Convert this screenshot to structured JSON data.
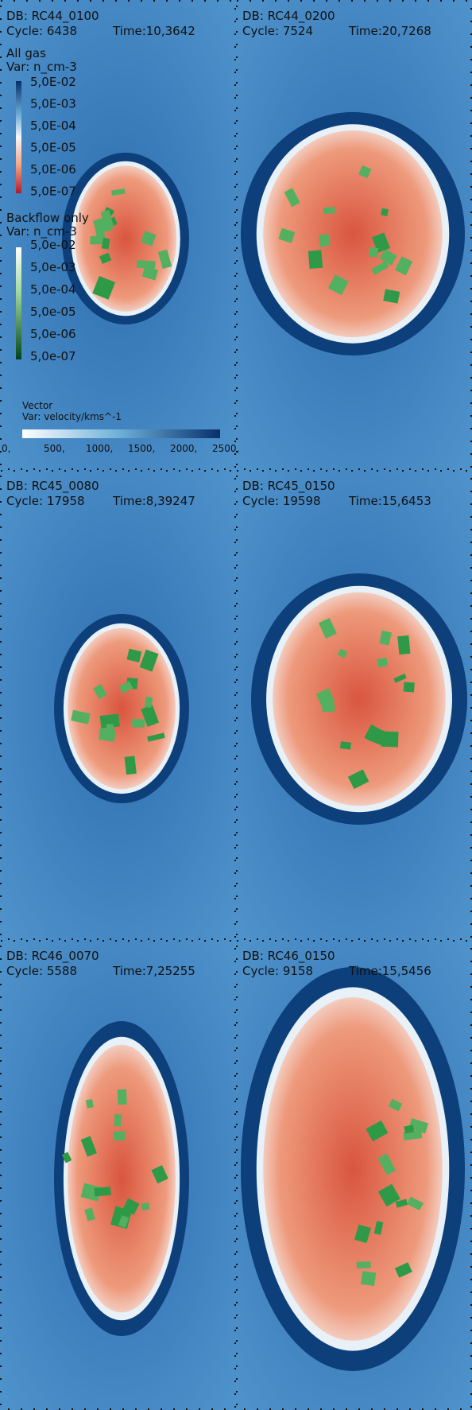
{
  "panels": [
    {
      "db": "DB: RC44_0100",
      "cycle": "Cycle: 6438",
      "time": "Time:10,3642"
    },
    {
      "db": "DB: RC44_0200",
      "cycle": "Cycle: 7524",
      "time": "Time:20,7268"
    },
    {
      "db": "DB: RC45_0080",
      "cycle": "Cycle: 17958",
      "time": "Time:8,39247"
    },
    {
      "db": "DB: RC45_0150",
      "cycle": "Cycle: 19598",
      "time": "Time:15,6453"
    },
    {
      "db": "DB: RC46_0070",
      "cycle": "Cycle: 5588",
      "time": "Time:7,25255"
    },
    {
      "db": "DB: RC46_0150",
      "cycle": "Cycle: 9158",
      "time": "Time:15,5456"
    }
  ],
  "legend": {
    "all_gas": {
      "title": "All gas",
      "var": "Var: n_cm-3",
      "labels": [
        "5,0E-02",
        "5,0E-03",
        "5,0E-04",
        "5,0E-05",
        "5,0E-06",
        "5,0E-07"
      ]
    },
    "backflow": {
      "title": "Backflow only",
      "var": "Var: n_cm-3",
      "labels": [
        "5,0e-02",
        "5,0e-03",
        "5,0e-04",
        "5,0e-05",
        "5,0e-06",
        "5,0e-07"
      ]
    },
    "vector": {
      "title": "Vector",
      "var": "Var: velocity/kms^-1",
      "labels": [
        "0,",
        "500,",
        "1000,",
        "1500,",
        "2000,",
        "2500,"
      ]
    }
  }
}
